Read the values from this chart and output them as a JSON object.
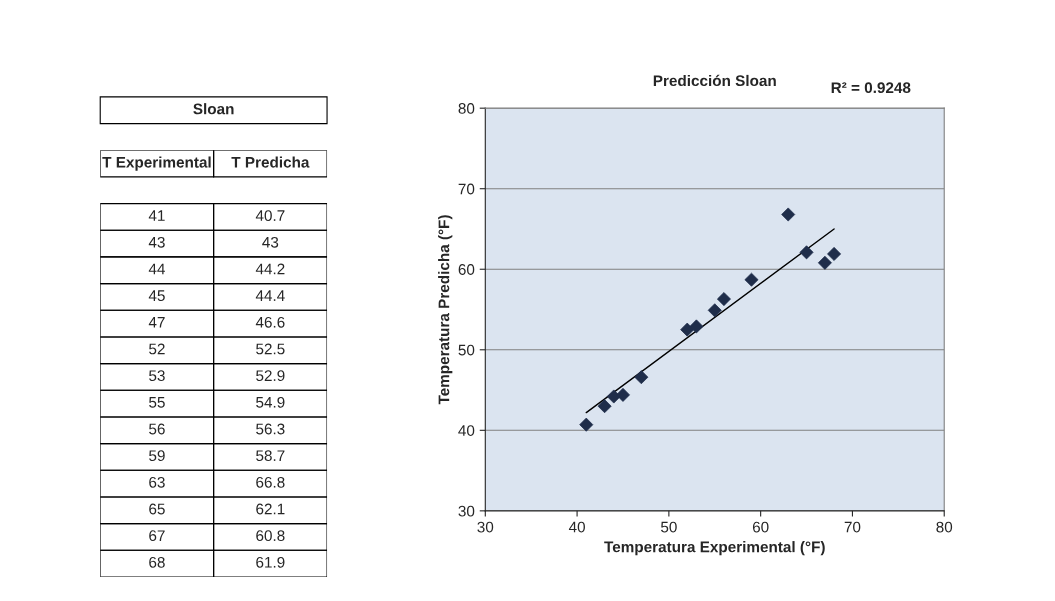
{
  "chart_data": [
    {
      "type": "other",
      "title": "Sloan",
      "annotations": [
        "T Experimental",
        "T Predicha",
        "41",
        "40.7",
        "43",
        "43",
        "44",
        "44.2",
        "45",
        "44.4",
        "47",
        "46.6",
        "52",
        "52.5",
        "53",
        "52.9",
        "55",
        "54.9",
        "56",
        "56.3",
        "59",
        "58.7",
        "63",
        "66.8",
        "65",
        "62.1",
        "67",
        "60.8",
        "68",
        "61.9"
      ]
    },
    {
      "type": "scatter",
      "title": "Predicción Sloan",
      "xlabel": "Temperatura Experimental (°F)",
      "ylabel": "Temperatura Predicha (°F)",
      "annotations": [
        "R² = 0.9248"
      ],
      "series": [
        {
          "color": "#1f2d4a",
          "marker": "diamond",
          "x": [
            41,
            43,
            44,
            45,
            47,
            52,
            53,
            55,
            56,
            59,
            63,
            65,
            67,
            68
          ],
          "values": [
            40.7,
            43,
            44.2,
            44.4,
            46.6,
            52.5,
            52.9,
            54.9,
            56.3,
            58.7,
            66.8,
            62.1,
            60.8,
            61.9
          ]
        },
        {
          "type": "line",
          "color": "#000000",
          "marker": "none",
          "x": [
            41,
            68
          ],
          "values": [
            42.2,
            65.0
          ]
        }
      ],
      "xlim": [
        30,
        80
      ],
      "xticks": [
        30,
        40,
        50,
        60,
        70,
        80
      ],
      "ylim": [
        30,
        80
      ],
      "yticks": [
        30,
        40,
        50,
        60,
        70,
        80
      ],
      "grid": "y",
      "legend": false
    }
  ]
}
